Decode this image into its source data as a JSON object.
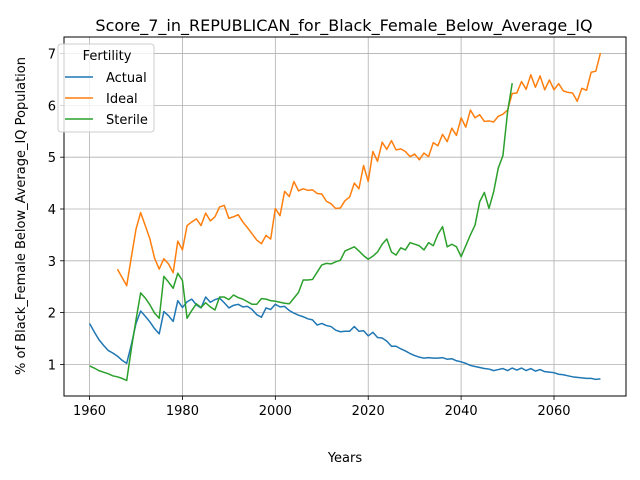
{
  "chart_data": {
    "type": "line",
    "title": "Score_7_in_REPUBLICAN_for_Black_Female_Below_Average_IQ",
    "xlabel": "Years",
    "ylabel": "% of Black_Female Below_Average_IQ Population",
    "xlim": [
      1954.5,
      2075.5
    ],
    "ylim": [
      0.39,
      7.32
    ],
    "xticks": [
      1960,
      1980,
      2000,
      2020,
      2040,
      2060
    ],
    "yticks": [
      1,
      2,
      3,
      4,
      5,
      6,
      7
    ],
    "grid": true,
    "legend": {
      "title": "Fertility",
      "placement": "top-left"
    },
    "series": [
      {
        "name": "Actual",
        "color": "#1f77b4",
        "points": [
          [
            1960,
            1.79
          ],
          [
            1961,
            1.63
          ],
          [
            1962,
            1.48
          ],
          [
            1963,
            1.37
          ],
          [
            1964,
            1.27
          ],
          [
            1965,
            1.22
          ],
          [
            1966,
            1.16
          ],
          [
            1967,
            1.08
          ],
          [
            1968,
            1.02
          ],
          [
            1969,
            1.38
          ],
          [
            1970,
            1.79
          ],
          [
            1971,
            2.03
          ],
          [
            1972,
            1.93
          ],
          [
            1973,
            1.82
          ],
          [
            1974,
            1.69
          ],
          [
            1975,
            1.59
          ],
          [
            1976,
            2.02
          ],
          [
            1977,
            1.94
          ],
          [
            1978,
            1.83
          ],
          [
            1979,
            2.23
          ],
          [
            1980,
            2.1
          ],
          [
            1981,
            2.21
          ],
          [
            1982,
            2.26
          ],
          [
            1983,
            2.15
          ],
          [
            1984,
            2.09
          ],
          [
            1985,
            2.3
          ],
          [
            1986,
            2.2
          ],
          [
            1987,
            2.25
          ],
          [
            1988,
            2.28
          ],
          [
            1989,
            2.19
          ],
          [
            1990,
            2.09
          ],
          [
            1991,
            2.14
          ],
          [
            1992,
            2.16
          ],
          [
            1993,
            2.11
          ],
          [
            1994,
            2.12
          ],
          [
            1995,
            2.06
          ],
          [
            1996,
            1.96
          ],
          [
            1997,
            1.91
          ],
          [
            1998,
            2.09
          ],
          [
            1999,
            2.06
          ],
          [
            2000,
            2.16
          ],
          [
            2001,
            2.11
          ],
          [
            2002,
            2.12
          ],
          [
            2003,
            2.04
          ],
          [
            2004,
            1.99
          ],
          [
            2005,
            1.95
          ],
          [
            2006,
            1.92
          ],
          [
            2007,
            1.88
          ],
          [
            2008,
            1.86
          ],
          [
            2009,
            1.76
          ],
          [
            2010,
            1.79
          ],
          [
            2011,
            1.75
          ],
          [
            2012,
            1.73
          ],
          [
            2013,
            1.66
          ],
          [
            2014,
            1.63
          ],
          [
            2015,
            1.64
          ],
          [
            2016,
            1.64
          ],
          [
            2017,
            1.73
          ],
          [
            2018,
            1.64
          ],
          [
            2019,
            1.65
          ],
          [
            2020,
            1.55
          ],
          [
            2021,
            1.62
          ],
          [
            2022,
            1.52
          ],
          [
            2023,
            1.51
          ],
          [
            2024,
            1.45
          ],
          [
            2025,
            1.35
          ],
          [
            2026,
            1.35
          ],
          [
            2027,
            1.3
          ],
          [
            2028,
            1.26
          ],
          [
            2029,
            1.21
          ],
          [
            2030,
            1.17
          ],
          [
            2031,
            1.14
          ],
          [
            2032,
            1.12
          ],
          [
            2033,
            1.13
          ],
          [
            2034,
            1.12
          ],
          [
            2035,
            1.12
          ],
          [
            2036,
            1.13
          ],
          [
            2037,
            1.1
          ],
          [
            2038,
            1.11
          ],
          [
            2039,
            1.07
          ],
          [
            2040,
            1.05
          ],
          [
            2041,
            1.02
          ],
          [
            2042,
            0.98
          ],
          [
            2043,
            0.96
          ],
          [
            2044,
            0.94
          ],
          [
            2045,
            0.92
          ],
          [
            2046,
            0.91
          ],
          [
            2047,
            0.88
          ],
          [
            2048,
            0.9
          ],
          [
            2049,
            0.92
          ],
          [
            2050,
            0.88
          ],
          [
            2051,
            0.93
          ],
          [
            2052,
            0.89
          ],
          [
            2053,
            0.93
          ],
          [
            2054,
            0.88
          ],
          [
            2055,
            0.92
          ],
          [
            2056,
            0.87
          ],
          [
            2057,
            0.9
          ],
          [
            2058,
            0.86
          ],
          [
            2059,
            0.85
          ],
          [
            2060,
            0.84
          ],
          [
            2061,
            0.81
          ],
          [
            2062,
            0.8
          ],
          [
            2063,
            0.78
          ],
          [
            2064,
            0.76
          ],
          [
            2065,
            0.75
          ],
          [
            2066,
            0.74
          ],
          [
            2067,
            0.73
          ],
          [
            2068,
            0.73
          ],
          [
            2069,
            0.71
          ],
          [
            2070,
            0.72
          ]
        ]
      },
      {
        "name": "Ideal",
        "color": "#ff7f0e",
        "points": [
          [
            1966,
            2.84
          ],
          [
            1967,
            2.68
          ],
          [
            1968,
            2.52
          ],
          [
            1969,
            3.07
          ],
          [
            1970,
            3.61
          ],
          [
            1971,
            3.93
          ],
          [
            1972,
            3.68
          ],
          [
            1973,
            3.42
          ],
          [
            1974,
            3.05
          ],
          [
            1975,
            2.84
          ],
          [
            1976,
            3.04
          ],
          [
            1977,
            2.94
          ],
          [
            1978,
            2.77
          ],
          [
            1979,
            3.38
          ],
          [
            1980,
            3.21
          ],
          [
            1981,
            3.68
          ],
          [
            1982,
            3.75
          ],
          [
            1983,
            3.81
          ],
          [
            1984,
            3.68
          ],
          [
            1985,
            3.92
          ],
          [
            1986,
            3.77
          ],
          [
            1987,
            3.85
          ],
          [
            1988,
            4.04
          ],
          [
            1989,
            4.07
          ],
          [
            1990,
            3.82
          ],
          [
            1991,
            3.85
          ],
          [
            1992,
            3.89
          ],
          [
            1993,
            3.75
          ],
          [
            1994,
            3.64
          ],
          [
            1995,
            3.52
          ],
          [
            1996,
            3.4
          ],
          [
            1997,
            3.33
          ],
          [
            1998,
            3.49
          ],
          [
            1999,
            3.42
          ],
          [
            2000,
            4.01
          ],
          [
            2001,
            3.87
          ],
          [
            2002,
            4.34
          ],
          [
            2003,
            4.24
          ],
          [
            2004,
            4.53
          ],
          [
            2005,
            4.35
          ],
          [
            2006,
            4.39
          ],
          [
            2007,
            4.36
          ],
          [
            2008,
            4.37
          ],
          [
            2009,
            4.3
          ],
          [
            2010,
            4.29
          ],
          [
            2011,
            4.15
          ],
          [
            2012,
            4.1
          ],
          [
            2013,
            4.01
          ],
          [
            2014,
            4.02
          ],
          [
            2015,
            4.16
          ],
          [
            2016,
            4.23
          ],
          [
            2017,
            4.5
          ],
          [
            2018,
            4.39
          ],
          [
            2019,
            4.84
          ],
          [
            2020,
            4.53
          ],
          [
            2021,
            5.11
          ],
          [
            2022,
            4.92
          ],
          [
            2023,
            5.29
          ],
          [
            2024,
            5.15
          ],
          [
            2025,
            5.32
          ],
          [
            2026,
            5.14
          ],
          [
            2027,
            5.16
          ],
          [
            2028,
            5.11
          ],
          [
            2029,
            5.01
          ],
          [
            2030,
            5.06
          ],
          [
            2031,
            4.95
          ],
          [
            2032,
            5.08
          ],
          [
            2033,
            5.01
          ],
          [
            2034,
            5.28
          ],
          [
            2035,
            5.22
          ],
          [
            2036,
            5.44
          ],
          [
            2037,
            5.3
          ],
          [
            2038,
            5.56
          ],
          [
            2039,
            5.42
          ],
          [
            2040,
            5.76
          ],
          [
            2041,
            5.58
          ],
          [
            2042,
            5.91
          ],
          [
            2043,
            5.76
          ],
          [
            2044,
            5.82
          ],
          [
            2045,
            5.69
          ],
          [
            2046,
            5.7
          ],
          [
            2047,
            5.68
          ],
          [
            2048,
            5.79
          ],
          [
            2049,
            5.83
          ],
          [
            2050,
            5.91
          ],
          [
            2051,
            6.23
          ],
          [
            2052,
            6.24
          ],
          [
            2053,
            6.46
          ],
          [
            2054,
            6.31
          ],
          [
            2055,
            6.59
          ],
          [
            2056,
            6.35
          ],
          [
            2057,
            6.57
          ],
          [
            2058,
            6.3
          ],
          [
            2059,
            6.49
          ],
          [
            2060,
            6.3
          ],
          [
            2061,
            6.42
          ],
          [
            2062,
            6.28
          ],
          [
            2063,
            6.25
          ],
          [
            2064,
            6.24
          ],
          [
            2065,
            6.08
          ],
          [
            2066,
            6.33
          ],
          [
            2067,
            6.29
          ],
          [
            2068,
            6.64
          ],
          [
            2069,
            6.66
          ],
          [
            2070,
            7.01
          ]
        ]
      },
      {
        "name": "Sterile",
        "color": "#2ca02c",
        "points": [
          [
            1960,
            0.97
          ],
          [
            1961,
            0.93
          ],
          [
            1962,
            0.88
          ],
          [
            1963,
            0.85
          ],
          [
            1964,
            0.82
          ],
          [
            1965,
            0.78
          ],
          [
            1966,
            0.76
          ],
          [
            1967,
            0.73
          ],
          [
            1968,
            0.69
          ],
          [
            1969,
            1.3
          ],
          [
            1970,
            1.86
          ],
          [
            1971,
            2.38
          ],
          [
            1972,
            2.28
          ],
          [
            1973,
            2.15
          ],
          [
            1974,
            1.99
          ],
          [
            1975,
            1.89
          ],
          [
            1976,
            2.7
          ],
          [
            1977,
            2.59
          ],
          [
            1978,
            2.47
          ],
          [
            1979,
            2.76
          ],
          [
            1980,
            2.62
          ],
          [
            1981,
            1.89
          ],
          [
            1982,
            2.04
          ],
          [
            1983,
            2.17
          ],
          [
            1984,
            2.1
          ],
          [
            1985,
            2.19
          ],
          [
            1986,
            2.11
          ],
          [
            1987,
            2.05
          ],
          [
            1988,
            2.3
          ],
          [
            1989,
            2.3
          ],
          [
            1990,
            2.25
          ],
          [
            1991,
            2.34
          ],
          [
            1992,
            2.29
          ],
          [
            1993,
            2.26
          ],
          [
            1994,
            2.21
          ],
          [
            1995,
            2.16
          ],
          [
            1996,
            2.16
          ],
          [
            1997,
            2.27
          ],
          [
            1998,
            2.26
          ],
          [
            1999,
            2.23
          ],
          [
            2000,
            2.22
          ],
          [
            2001,
            2.2
          ],
          [
            2002,
            2.18
          ],
          [
            2003,
            2.17
          ],
          [
            2004,
            2.28
          ],
          [
            2005,
            2.39
          ],
          [
            2006,
            2.63
          ],
          [
            2007,
            2.63
          ],
          [
            2008,
            2.64
          ],
          [
            2009,
            2.78
          ],
          [
            2010,
            2.92
          ],
          [
            2011,
            2.95
          ],
          [
            2012,
            2.94
          ],
          [
            2013,
            2.98
          ],
          [
            2014,
            3.01
          ],
          [
            2015,
            3.19
          ],
          [
            2016,
            3.23
          ],
          [
            2017,
            3.27
          ],
          [
            2018,
            3.19
          ],
          [
            2019,
            3.1
          ],
          [
            2020,
            3.03
          ],
          [
            2021,
            3.09
          ],
          [
            2022,
            3.17
          ],
          [
            2023,
            3.32
          ],
          [
            2024,
            3.42
          ],
          [
            2025,
            3.17
          ],
          [
            2026,
            3.11
          ],
          [
            2027,
            3.25
          ],
          [
            2028,
            3.21
          ],
          [
            2029,
            3.35
          ],
          [
            2030,
            3.32
          ],
          [
            2031,
            3.29
          ],
          [
            2032,
            3.21
          ],
          [
            2033,
            3.35
          ],
          [
            2034,
            3.29
          ],
          [
            2035,
            3.51
          ],
          [
            2036,
            3.66
          ],
          [
            2037,
            3.27
          ],
          [
            2038,
            3.32
          ],
          [
            2039,
            3.27
          ],
          [
            2040,
            3.08
          ],
          [
            2041,
            3.29
          ],
          [
            2042,
            3.5
          ],
          [
            2043,
            3.69
          ],
          [
            2044,
            4.14
          ],
          [
            2045,
            4.32
          ],
          [
            2046,
            4.01
          ],
          [
            2047,
            4.33
          ],
          [
            2048,
            4.79
          ],
          [
            2049,
            5.03
          ],
          [
            2050,
            5.87
          ],
          [
            2051,
            6.43
          ]
        ]
      }
    ]
  }
}
